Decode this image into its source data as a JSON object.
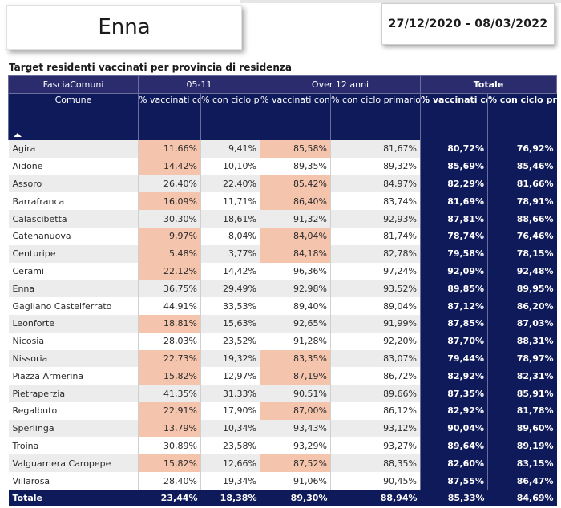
{
  "header": {
    "province": "Enna",
    "date_range": "27/12/2020 - 08/03/2022"
  },
  "table": {
    "title": "Target residenti vaccinati per provincia di residenza",
    "group_headers": {
      "fascia": "FasciaComuni",
      "g1": "05-11",
      "g2": "Over 12 anni",
      "g3": "Totale"
    },
    "col_headers": {
      "comune": "Comune",
      "c1": "% vaccinati con almeno una dose",
      "c2": "% con ciclo primario completato",
      "c3": "% vaccinati con almeno una dose",
      "c4": "% con ciclo primario completato",
      "c5": "% vaccinati con almeno una dose",
      "c6": "% con ciclo primario completato"
    },
    "rows": [
      {
        "name": "Agira",
        "v": [
          "11,66%",
          "9,41%",
          "85,58%",
          "81,67%",
          "80,72%",
          "76,92%"
        ],
        "hl": [
          true,
          false,
          true,
          false
        ]
      },
      {
        "name": "Aidone",
        "v": [
          "14,42%",
          "10,10%",
          "89,35%",
          "89,32%",
          "85,69%",
          "85,46%"
        ],
        "hl": [
          true,
          false,
          false,
          false
        ]
      },
      {
        "name": "Assoro",
        "v": [
          "26,40%",
          "22,40%",
          "85,42%",
          "84,97%",
          "82,29%",
          "81,66%"
        ],
        "hl": [
          false,
          false,
          true,
          false
        ]
      },
      {
        "name": "Barrafranca",
        "v": [
          "16,09%",
          "11,71%",
          "86,40%",
          "83,74%",
          "81,69%",
          "78,91%"
        ],
        "hl": [
          true,
          false,
          true,
          false
        ]
      },
      {
        "name": "Calascibetta",
        "v": [
          "30,30%",
          "18,61%",
          "91,32%",
          "92,93%",
          "87,81%",
          "88,66%"
        ],
        "hl": [
          false,
          false,
          false,
          false
        ]
      },
      {
        "name": "Catenanuova",
        "v": [
          "9,97%",
          "8,04%",
          "84,04%",
          "81,74%",
          "78,74%",
          "76,46%"
        ],
        "hl": [
          true,
          false,
          true,
          false
        ]
      },
      {
        "name": "Centuripe",
        "v": [
          "5,48%",
          "3,77%",
          "84,18%",
          "82,78%",
          "79,58%",
          "78,15%"
        ],
        "hl": [
          true,
          false,
          true,
          false
        ]
      },
      {
        "name": "Cerami",
        "v": [
          "22,12%",
          "14,42%",
          "96,36%",
          "97,24%",
          "92,09%",
          "92,48%"
        ],
        "hl": [
          true,
          false,
          false,
          false
        ]
      },
      {
        "name": "Enna",
        "v": [
          "36,75%",
          "29,49%",
          "92,98%",
          "93,52%",
          "89,85%",
          "89,95%"
        ],
        "hl": [
          false,
          false,
          false,
          false
        ]
      },
      {
        "name": "Gagliano Castelferrato",
        "v": [
          "44,91%",
          "33,53%",
          "89,40%",
          "89,04%",
          "87,12%",
          "86,20%"
        ],
        "hl": [
          false,
          false,
          false,
          false
        ]
      },
      {
        "name": "Leonforte",
        "v": [
          "18,81%",
          "15,63%",
          "92,65%",
          "91,99%",
          "87,85%",
          "87,03%"
        ],
        "hl": [
          true,
          false,
          false,
          false
        ]
      },
      {
        "name": "Nicosia",
        "v": [
          "28,03%",
          "23,52%",
          "91,28%",
          "92,20%",
          "87,70%",
          "88,31%"
        ],
        "hl": [
          false,
          false,
          false,
          false
        ]
      },
      {
        "name": "Nissoria",
        "v": [
          "22,73%",
          "19,32%",
          "83,35%",
          "83,07%",
          "79,44%",
          "78,97%"
        ],
        "hl": [
          true,
          false,
          true,
          false
        ]
      },
      {
        "name": "Piazza Armerina",
        "v": [
          "15,82%",
          "12,97%",
          "87,19%",
          "86,72%",
          "82,92%",
          "82,31%"
        ],
        "hl": [
          true,
          false,
          true,
          false
        ]
      },
      {
        "name": "Pietraperzia",
        "v": [
          "41,35%",
          "31,33%",
          "90,51%",
          "89,66%",
          "87,35%",
          "85,91%"
        ],
        "hl": [
          false,
          false,
          false,
          false
        ]
      },
      {
        "name": "Regalbuto",
        "v": [
          "22,91%",
          "17,90%",
          "87,00%",
          "86,12%",
          "82,92%",
          "81,78%"
        ],
        "hl": [
          true,
          false,
          true,
          false
        ]
      },
      {
        "name": "Sperlinga",
        "v": [
          "13,79%",
          "10,34%",
          "93,43%",
          "93,12%",
          "90,04%",
          "89,60%"
        ],
        "hl": [
          true,
          false,
          false,
          false
        ]
      },
      {
        "name": "Troina",
        "v": [
          "30,89%",
          "23,58%",
          "93,29%",
          "93,27%",
          "89,64%",
          "89,19%"
        ],
        "hl": [
          false,
          false,
          false,
          false
        ]
      },
      {
        "name": "Valguarnera Caropepe",
        "v": [
          "15,82%",
          "12,66%",
          "87,52%",
          "88,35%",
          "82,60%",
          "83,15%"
        ],
        "hl": [
          true,
          false,
          true,
          false
        ]
      },
      {
        "name": "Villarosa",
        "v": [
          "28,40%",
          "19,34%",
          "91,06%",
          "90,45%",
          "87,55%",
          "86,47%"
        ],
        "hl": [
          false,
          false,
          false,
          false
        ]
      }
    ],
    "total": {
      "name": "Totale",
      "v": [
        "23,44%",
        "18,38%",
        "89,30%",
        "88,94%",
        "85,33%",
        "84,69%"
      ]
    },
    "colors": {
      "header": "#0f1a5a",
      "highlight": "#f5c4ac",
      "stripe": "#ececec"
    }
  }
}
